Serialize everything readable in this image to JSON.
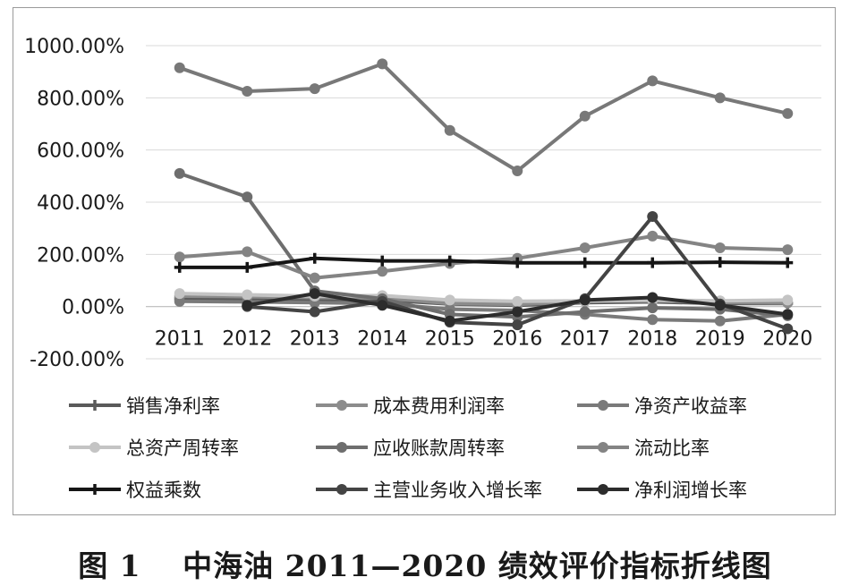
{
  "caption": "图 1　 中海油 2011—2020 绩效评价指标折线图",
  "chart_data": {
    "type": "line",
    "title": "",
    "xlabel": "",
    "ylabel": "",
    "categories": [
      "2011",
      "2012",
      "2013",
      "2014",
      "2015",
      "2016",
      "2017",
      "2018",
      "2019",
      "2020"
    ],
    "y_ticks": [
      "1000.00%",
      "800.00%",
      "600.00%",
      "400.00%",
      "200.00%",
      "0.00%",
      "-200.00%"
    ],
    "ylim": [
      -200,
      1000
    ],
    "grid": true,
    "legend_position": "bottom",
    "series": [
      {
        "name": "销售净利率",
        "color": "#5a5a5a",
        "marker": "plus",
        "values": [
          30,
          30,
          28,
          25,
          10,
          5,
          15,
          18,
          12,
          12
        ]
      },
      {
        "name": "成本费用利润率",
        "color": "#8c8c8c",
        "marker": "circle",
        "values": [
          40,
          38,
          35,
          33,
          12,
          8,
          20,
          22,
          16,
          14
        ]
      },
      {
        "name": "净资产收益率",
        "color": "#7a7a7a",
        "marker": "circle",
        "values": [
          20,
          18,
          15,
          12,
          -10,
          -15,
          -30,
          -50,
          -55,
          -30
        ]
      },
      {
        "name": "总资产周转率",
        "color": "#c4c4c4",
        "marker": "circle",
        "values": [
          50,
          45,
          40,
          42,
          25,
          20,
          22,
          25,
          22,
          25
        ]
      },
      {
        "name": "应收账款周转率",
        "color": "#6e6e6e",
        "marker": "circle",
        "values": [
          510,
          420,
          60,
          30,
          -30,
          -40,
          -20,
          -5,
          -10,
          -35
        ]
      },
      {
        "name": "流动比率",
        "color": "#848484",
        "marker": "circle",
        "values": [
          190,
          210,
          110,
          135,
          165,
          185,
          225,
          270,
          225,
          218
        ]
      },
      {
        "name": "权益乘数",
        "color": "#151515",
        "marker": "plus",
        "values": [
          150,
          150,
          185,
          175,
          175,
          168,
          168,
          168,
          170,
          168
        ]
      },
      {
        "name": "主营业务收入增长率",
        "color": "#444444",
        "marker": "circle",
        "values": [
          null,
          0,
          -20,
          20,
          -60,
          -70,
          30,
          345,
          10,
          -85
        ]
      },
      {
        "name": "净利润增长率",
        "color": "#2c2c2c",
        "marker": "circle",
        "values": [
          null,
          5,
          50,
          5,
          -55,
          -20,
          25,
          35,
          5,
          -30
        ]
      },
      {
        "name": "",
        "color": "#787878",
        "marker": "circle",
        "values": [
          915,
          825,
          835,
          930,
          675,
          520,
          730,
          865,
          800,
          740
        ]
      }
    ]
  }
}
